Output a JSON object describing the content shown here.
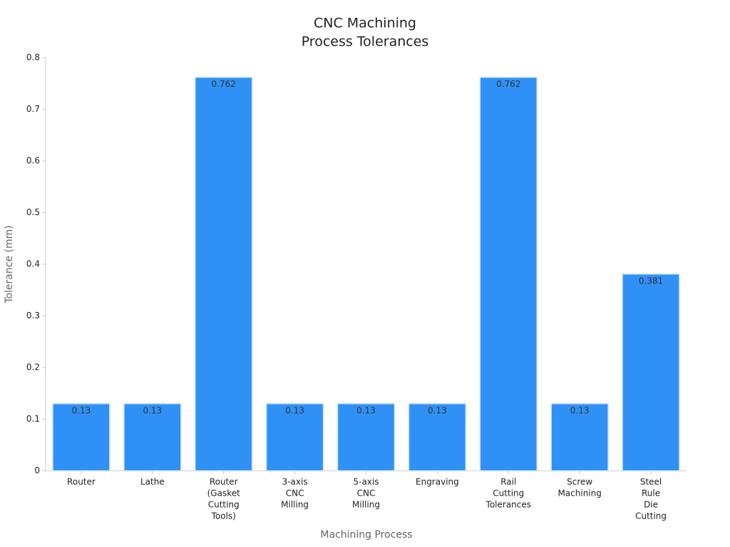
{
  "chart_data": {
    "type": "bar",
    "title": [
      "CNC Machining",
      "Process Tolerances"
    ],
    "xlabel": "Machining Process",
    "ylabel": "Tolerance (mm)",
    "categories": [
      [
        "Router"
      ],
      [
        "Lathe"
      ],
      [
        "Router",
        "(Gasket",
        "Cutting",
        "Tools)"
      ],
      [
        "3-axis",
        "CNC",
        "Milling"
      ],
      [
        "5-axis",
        "CNC",
        "Milling"
      ],
      [
        "Engraving"
      ],
      [
        "Rail",
        "Cutting",
        "Tolerances"
      ],
      [
        "Screw",
        "Machining"
      ],
      [
        "Steel",
        "Rule",
        "Die",
        "Cutting"
      ]
    ],
    "values": [
      0.13,
      0.13,
      0.762,
      0.13,
      0.13,
      0.13,
      0.762,
      0.13,
      0.381
    ],
    "color": "#2f91f5",
    "ylim": [
      0,
      0.8
    ],
    "yticks": [
      0,
      0.1,
      0.2,
      0.3,
      0.4,
      0.5,
      0.6,
      0.7,
      0.8
    ],
    "grid": false
  }
}
